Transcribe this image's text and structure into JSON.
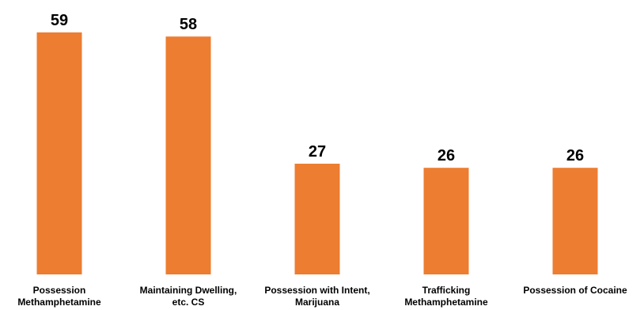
{
  "chart_data": {
    "type": "bar",
    "title": "",
    "xlabel": "",
    "ylabel": "",
    "ylim": [
      0,
      59
    ],
    "grid": false,
    "legend": "none",
    "bar_color": "#ED7D31",
    "categories": [
      [
        "Possession",
        "Methamphetamine"
      ],
      [
        "Maintaining Dwelling,",
        "etc. CS"
      ],
      [
        "Possession with Intent,",
        "Marijuana"
      ],
      [
        "Trafficking",
        "Methamphetamine"
      ],
      [
        "Possession of Cocaine"
      ]
    ],
    "values": [
      59,
      58,
      27,
      26,
      26
    ]
  }
}
